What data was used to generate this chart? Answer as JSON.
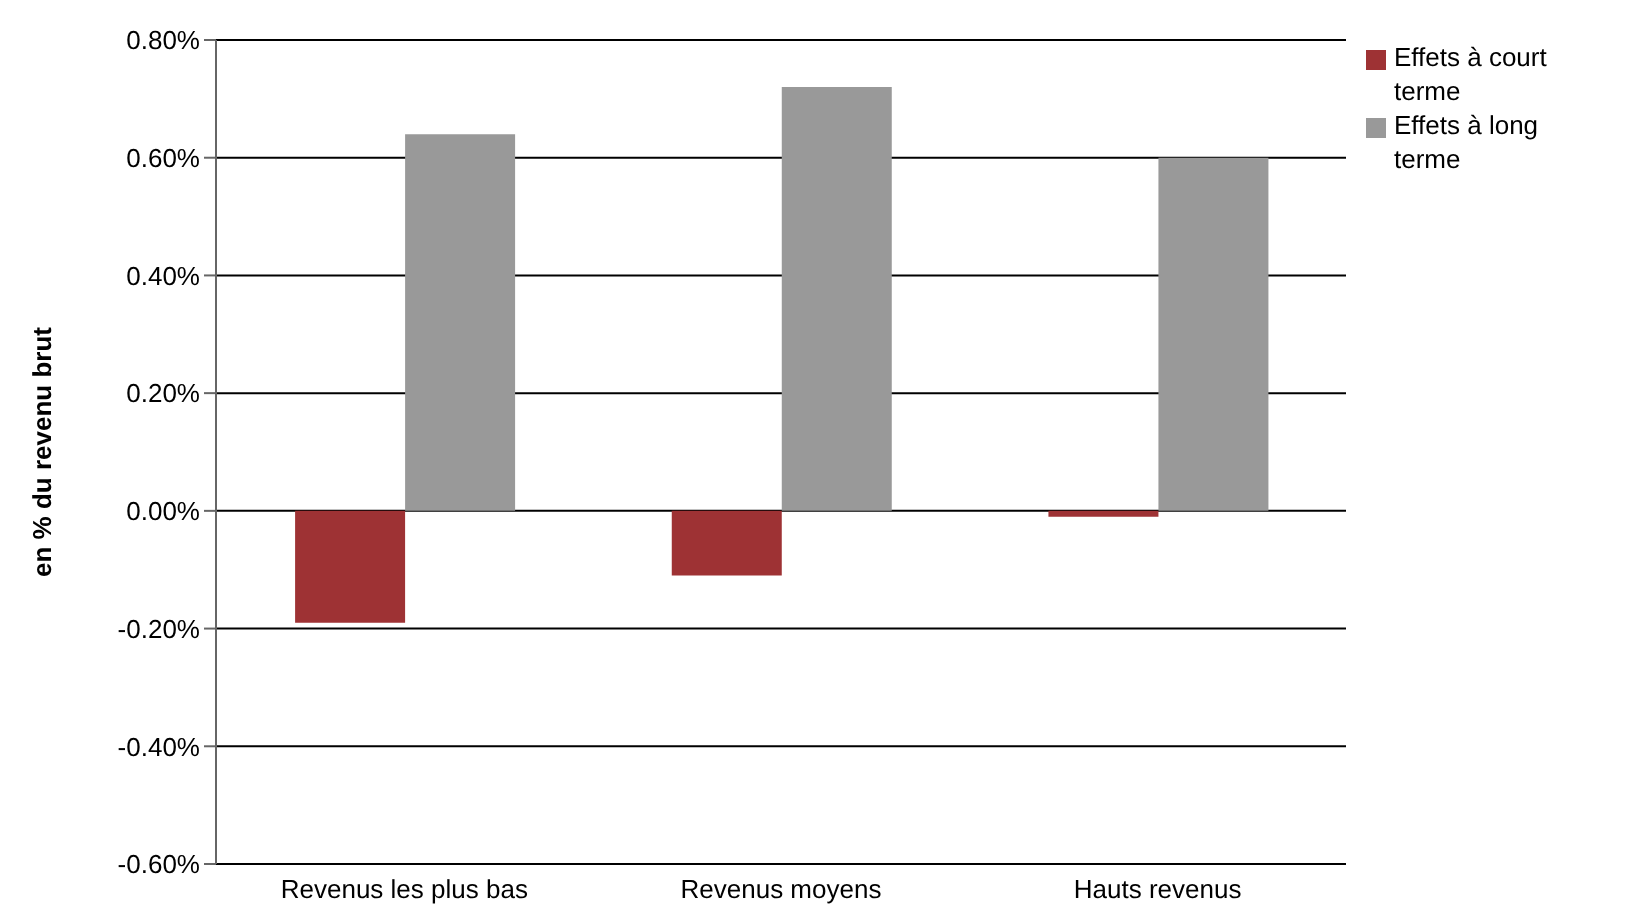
{
  "chart_data": {
    "type": "bar",
    "ylabel": "en % du revenu brut",
    "categories": [
      "Revenus les plus bas",
      "Revenus moyens",
      "Hauts revenus"
    ],
    "series": [
      {
        "name": "Effets à court terme",
        "color": "#9e3234",
        "values": [
          -0.19,
          -0.11,
          -0.01
        ]
      },
      {
        "name": "Effets à long terme",
        "color": "#999999",
        "values": [
          0.64,
          0.72,
          0.6
        ]
      }
    ],
    "ylim": [
      -0.6,
      0.8
    ],
    "yticks": [
      {
        "value": -0.6,
        "label": "-0.60%"
      },
      {
        "value": -0.4,
        "label": "-0.40%"
      },
      {
        "value": -0.2,
        "label": "-0.20%"
      },
      {
        "value": 0,
        "label": "0.00%"
      },
      {
        "value": 0.2,
        "label": "0.20%"
      },
      {
        "value": 0.4,
        "label": "0.40%"
      },
      {
        "value": 0.6,
        "label": "0.60%"
      },
      {
        "value": 0.8,
        "label": "0.80%"
      }
    ],
    "grid": "y",
    "legend": "top right"
  }
}
